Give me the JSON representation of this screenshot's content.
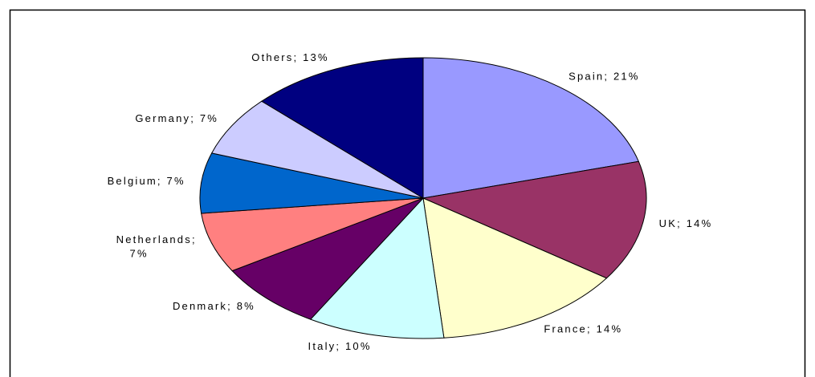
{
  "chart_data": {
    "type": "pie",
    "categories": [
      "Spain",
      "UK",
      "France",
      "Italy",
      "Denmark",
      "Netherlands",
      "Belgium",
      "Germany",
      "Others"
    ],
    "values": [
      21,
      14,
      14,
      10,
      8,
      7,
      7,
      7,
      13
    ],
    "value_labels": [
      "Spain; 21%",
      "UK; 14%",
      "France; 14%",
      "Italy; 10%",
      "Denmark; 8%",
      "Netherlands; 7%",
      "Belgium; 7%",
      "Germany; 7%",
      "Others; 13%"
    ],
    "colors": [
      "#9999ff",
      "#993366",
      "#ffffcc",
      "#ccffff",
      "#660066",
      "#ff8080",
      "#0066cc",
      "#ccccff",
      "#000080"
    ]
  }
}
